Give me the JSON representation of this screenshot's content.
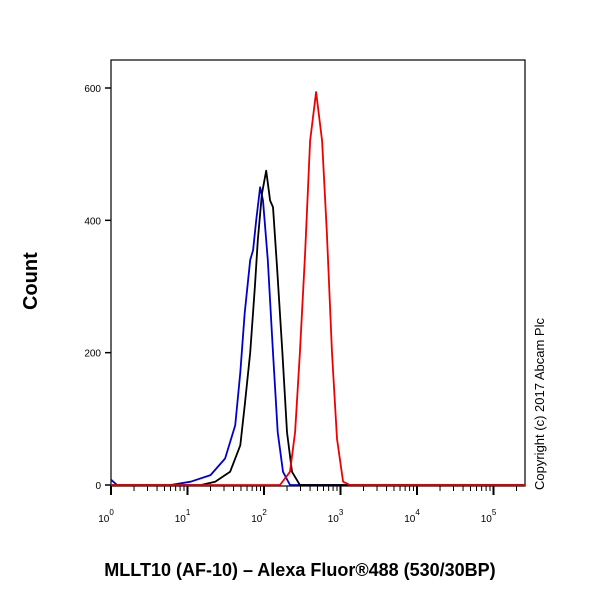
{
  "chart_data": {
    "type": "line",
    "title": "",
    "xlabel": "MLLT10 (AF-10) – Alexa Fluor®488 (530/30BP)",
    "ylabel": "Count",
    "xscale": "log",
    "xlim": [
      1,
      270000
    ],
    "ylim": [
      0,
      640
    ],
    "xticks": [
      "10^0",
      "10^1",
      "10^2",
      "10^3",
      "10^4",
      "10^5"
    ],
    "yticks": [
      0,
      200,
      400,
      600
    ],
    "grid": false,
    "annotation": "Copyright (c) 2017 Abcam Plc",
    "series": [
      {
        "color": "#0000cc",
        "points": [
          [
            1,
            8
          ],
          [
            1.2,
            0
          ],
          [
            6,
            0
          ],
          [
            11,
            5
          ],
          [
            20,
            15
          ],
          [
            31,
            40
          ],
          [
            42,
            90
          ],
          [
            49,
            170
          ],
          [
            56,
            260
          ],
          [
            66,
            340
          ],
          [
            72,
            355
          ],
          [
            79,
            400
          ],
          [
            89,
            450
          ],
          [
            97,
            430
          ],
          [
            112,
            340
          ],
          [
            131,
            200
          ],
          [
            151,
            80
          ],
          [
            177,
            20
          ],
          [
            219,
            0
          ],
          [
            270000,
            0
          ]
        ]
      },
      {
        "color": "#000000",
        "points": [
          [
            1,
            0
          ],
          [
            15,
            0
          ],
          [
            23,
            5
          ],
          [
            36,
            20
          ],
          [
            49,
            60
          ],
          [
            56,
            120
          ],
          [
            66,
            200
          ],
          [
            76,
            300
          ],
          [
            83,
            370
          ],
          [
            94,
            440
          ],
          [
            107,
            475
          ],
          [
            120,
            430
          ],
          [
            131,
            420
          ],
          [
            148,
            330
          ],
          [
            174,
            200
          ],
          [
            200,
            80
          ],
          [
            232,
            20
          ],
          [
            295,
            0
          ],
          [
            270000,
            0
          ]
        ]
      },
      {
        "color": "#ee0000",
        "points": [
          [
            1,
            0
          ],
          [
            162,
            0
          ],
          [
            219,
            20
          ],
          [
            255,
            80
          ],
          [
            295,
            200
          ],
          [
            345,
            350
          ],
          [
            400,
            520
          ],
          [
            480,
            594
          ],
          [
            575,
            520
          ],
          [
            665,
            380
          ],
          [
            775,
            200
          ],
          [
            900,
            70
          ],
          [
            1080,
            5
          ],
          [
            1330,
            0
          ],
          [
            270000,
            0
          ]
        ]
      }
    ]
  }
}
